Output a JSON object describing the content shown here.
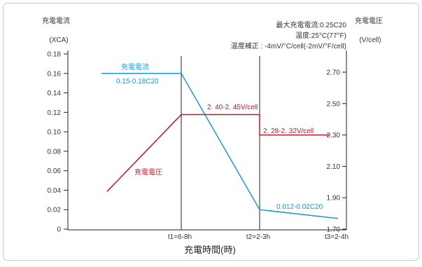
{
  "chart_data": {
    "type": "line",
    "xlabel": "充電時間(時)",
    "x_ticks": [
      "t1=6-8h",
      "t2=2-3h",
      "t3=2-4h"
    ],
    "y_left": {
      "title": "充電電流",
      "unit": "(XCA)",
      "ticks": [
        "0",
        "0.02",
        "0.04",
        "0.06",
        "0.08",
        "0.10",
        "0.12",
        "0.14",
        "0.16",
        "0.18"
      ],
      "ylim": [
        0,
        0.18
      ]
    },
    "y_right": {
      "title": "充電電圧",
      "unit": "(V/cell)",
      "ticks": [
        "1.70",
        "1.90",
        "2.10",
        "2.30",
        "2.50",
        "2.70"
      ],
      "ylim": [
        1.7,
        2.8
      ]
    },
    "notes": [
      "最大充電電流:0.25C20",
      "温度:25°C(77°F)",
      "温度補正 : -4mV/°C/cell(-2mV/°F/cell)"
    ],
    "series": [
      {
        "name": "充電電流",
        "axis": "left",
        "color": "#1a9ad6",
        "points": [
          [
            0,
            0.16
          ],
          [
            1,
            0.16
          ],
          [
            2,
            0.02
          ],
          [
            3,
            0.011
          ]
        ]
      },
      {
        "name": "充電電圧",
        "axis": "right",
        "color": "#c0182b",
        "points": [
          [
            0.07,
            1.94
          ],
          [
            1,
            2.43
          ],
          [
            2,
            2.43
          ],
          [
            2,
            2.3
          ],
          [
            2.9,
            2.3
          ]
        ]
      }
    ],
    "annotations": [
      {
        "text": "充電電流",
        "color": "#1a9ad6"
      },
      {
        "text": "0.15-0.18C20",
        "color": "#1a9ad6"
      },
      {
        "text": "2. 40-2. 45V/cell",
        "color": "#c0182b"
      },
      {
        "text": "2. 28-2. 32V/cell",
        "color": "#c0182b"
      },
      {
        "text": "充電電圧",
        "color": "#c0182b"
      },
      {
        "text": "0.012-0.02C20",
        "color": "#1a9ad6"
      }
    ],
    "grid": false
  }
}
